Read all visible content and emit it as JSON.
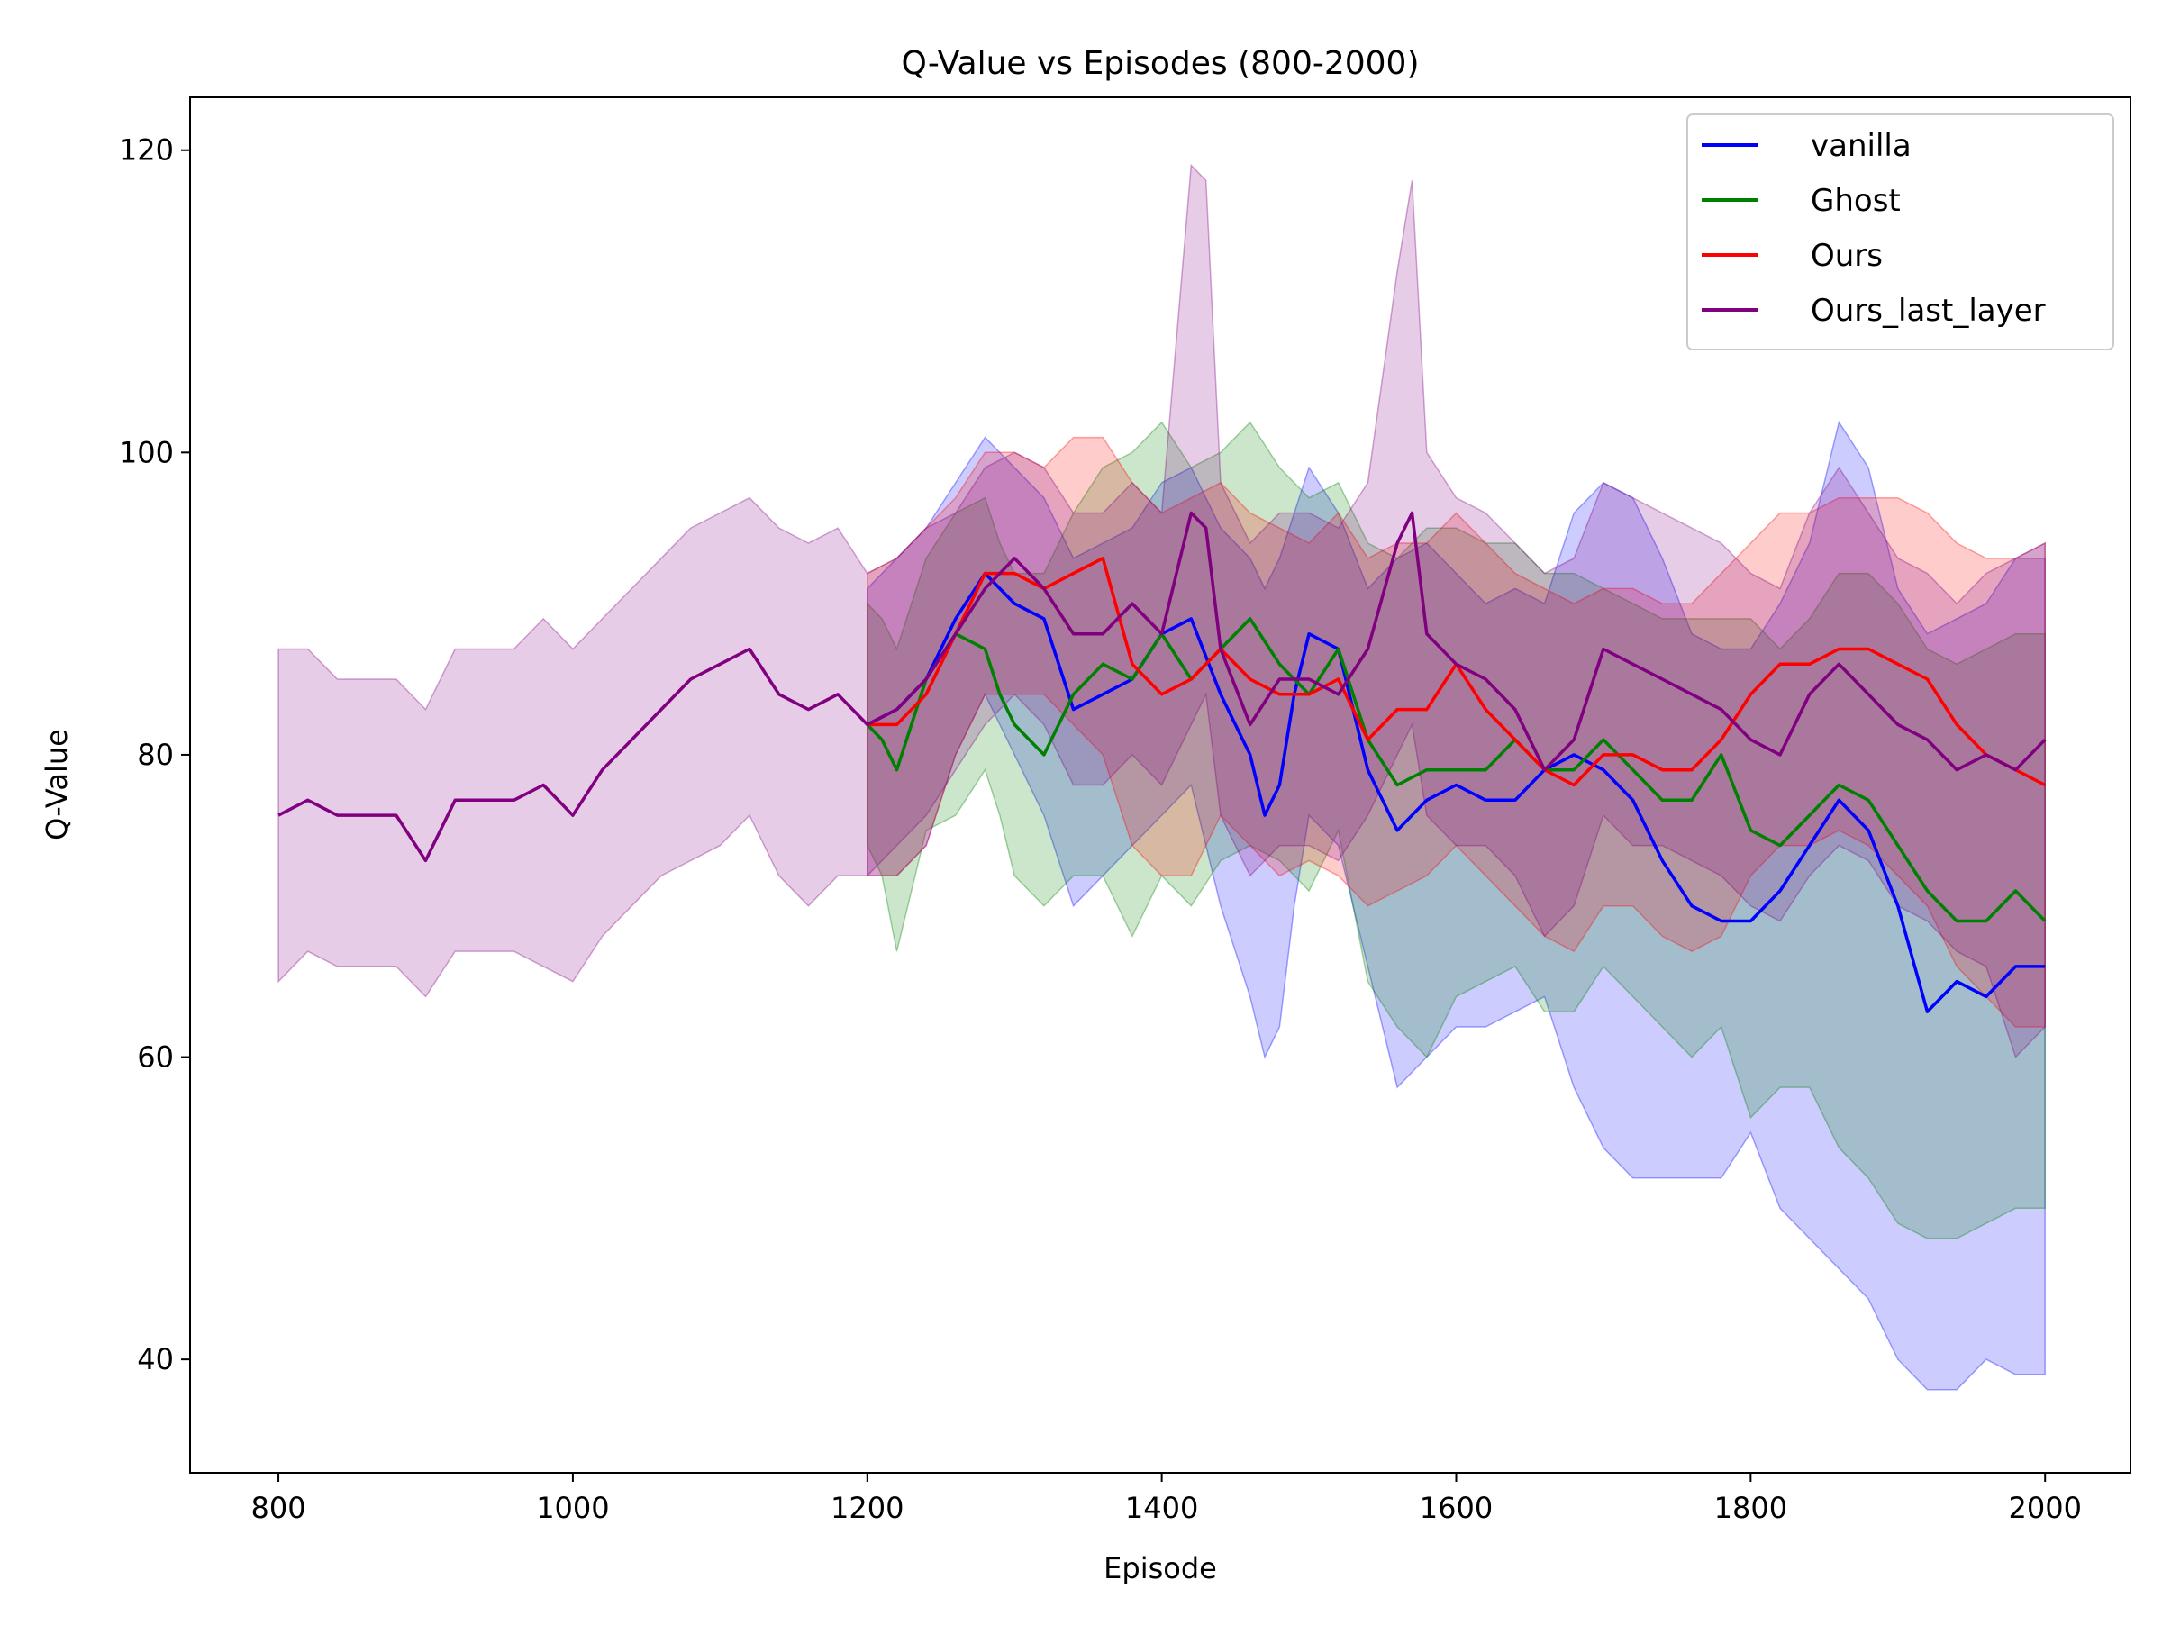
{
  "chart_data": {
    "type": "line",
    "title": "Q-Value vs Episodes (800-2000)",
    "xlabel": "Episode",
    "ylabel": "Q-Value",
    "xlim": [
      740,
      2058
    ],
    "ylim": [
      32.5,
      123.5
    ],
    "xticks": [
      800,
      1000,
      1200,
      1400,
      1600,
      1800,
      2000
    ],
    "yticks": [
      40,
      60,
      80,
      100,
      120
    ],
    "legend_position": "top-right",
    "series": [
      {
        "name": "vanilla",
        "color": "#0000ff",
        "x": [
          1200,
          1220,
          1240,
          1260,
          1280,
          1300,
          1320,
          1340,
          1360,
          1380,
          1400,
          1420,
          1440,
          1460,
          1470,
          1480,
          1490,
          1500,
          1520,
          1540,
          1560,
          1580,
          1600,
          1620,
          1640,
          1660,
          1680,
          1700,
          1720,
          1740,
          1760,
          1780,
          1800,
          1820,
          1840,
          1860,
          1880,
          1900,
          1920,
          1940,
          1960,
          1980,
          2000
        ],
        "mean": [
          82,
          83,
          85,
          89,
          92,
          90,
          89,
          83,
          84,
          85,
          88,
          89,
          84,
          80,
          76,
          78,
          84,
          88,
          87,
          79,
          75,
          77,
          78,
          77,
          77,
          79,
          80,
          79,
          77,
          73,
          70,
          69,
          69,
          71,
          74,
          77,
          75,
          70,
          63,
          65,
          64,
          66,
          66
        ],
        "lower": [
          72,
          72,
          74,
          80,
          84,
          80,
          76,
          70,
          72,
          74,
          76,
          78,
          70,
          64,
          60,
          62,
          70,
          76,
          74,
          66,
          58,
          60,
          62,
          62,
          63,
          64,
          58,
          54,
          52,
          52,
          52,
          52,
          55,
          50,
          48,
          46,
          44,
          40,
          38,
          38,
          40,
          39,
          39
        ],
        "upper": [
          91,
          93,
          95,
          98,
          101,
          99,
          97,
          93,
          94,
          95,
          98,
          99,
          95,
          93,
          91,
          93,
          96,
          99,
          96,
          91,
          93,
          94,
          92,
          90,
          91,
          90,
          96,
          98,
          97,
          93,
          88,
          87,
          87,
          90,
          94,
          102,
          99,
          91,
          88,
          89,
          90,
          93,
          94
        ]
      },
      {
        "name": "Ghost",
        "color": "#008000",
        "x": [
          1200,
          1210,
          1220,
          1240,
          1260,
          1280,
          1290,
          1300,
          1320,
          1340,
          1360,
          1380,
          1400,
          1420,
          1440,
          1460,
          1480,
          1500,
          1520,
          1540,
          1560,
          1580,
          1600,
          1620,
          1640,
          1660,
          1680,
          1700,
          1720,
          1740,
          1760,
          1780,
          1800,
          1820,
          1840,
          1860,
          1880,
          1900,
          1920,
          1940,
          1960,
          1980,
          2000
        ],
        "mean": [
          82,
          81,
          79,
          85,
          88,
          87,
          84,
          82,
          80,
          84,
          86,
          85,
          88,
          85,
          87,
          89,
          86,
          84,
          87,
          81,
          78,
          79,
          79,
          79,
          81,
          79,
          79,
          81,
          79,
          77,
          77,
          80,
          75,
          74,
          76,
          78,
          77,
          74,
          71,
          69,
          69,
          71,
          69
        ],
        "lower": [
          74,
          72,
          67,
          75,
          76,
          79,
          76,
          72,
          70,
          72,
          72,
          68,
          72,
          70,
          73,
          74,
          73,
          71,
          75,
          65,
          62,
          60,
          64,
          65,
          66,
          63,
          63,
          66,
          64,
          62,
          60,
          62,
          56,
          58,
          58,
          54,
          52,
          49,
          48,
          48,
          49,
          50,
          50
        ],
        "upper": [
          90,
          89,
          87,
          93,
          96,
          97,
          94,
          92,
          92,
          96,
          99,
          100,
          102,
          99,
          100,
          102,
          99,
          97,
          98,
          94,
          93,
          95,
          95,
          94,
          94,
          92,
          92,
          91,
          90,
          89,
          89,
          89,
          89,
          87,
          89,
          92,
          92,
          90,
          87,
          86,
          87,
          88,
          88
        ]
      },
      {
        "name": "Ours",
        "color": "#ff0000",
        "x": [
          1200,
          1220,
          1240,
          1260,
          1280,
          1300,
          1320,
          1340,
          1360,
          1380,
          1400,
          1420,
          1440,
          1460,
          1480,
          1500,
          1520,
          1540,
          1560,
          1580,
          1600,
          1620,
          1640,
          1660,
          1680,
          1700,
          1720,
          1740,
          1760,
          1780,
          1800,
          1820,
          1840,
          1860,
          1880,
          1900,
          1920,
          1940,
          1960,
          1980,
          2000
        ],
        "mean": [
          82,
          82,
          84,
          88,
          92,
          92,
          91,
          92,
          93,
          86,
          84,
          85,
          87,
          85,
          84,
          84,
          85,
          81,
          83,
          83,
          86,
          83,
          81,
          79,
          78,
          80,
          80,
          79,
          79,
          81,
          84,
          86,
          86,
          87,
          87,
          86,
          85,
          82,
          80,
          79,
          78
        ],
        "lower": [
          72,
          72,
          74,
          80,
          84,
          84,
          84,
          82,
          80,
          74,
          72,
          72,
          76,
          74,
          72,
          73,
          72,
          70,
          71,
          72,
          74,
          72,
          70,
          68,
          67,
          70,
          70,
          68,
          67,
          68,
          72,
          74,
          74,
          75,
          74,
          72,
          70,
          66,
          64,
          62,
          62
        ],
        "upper": [
          92,
          93,
          95,
          97,
          100,
          100,
          99,
          101,
          101,
          98,
          96,
          97,
          98,
          96,
          95,
          94,
          96,
          93,
          94,
          94,
          96,
          94,
          92,
          91,
          90,
          91,
          91,
          90,
          90,
          92,
          94,
          96,
          96,
          97,
          97,
          97,
          96,
          94,
          93,
          93,
          94
        ]
      },
      {
        "name": "Ours_last_layer",
        "color": "#800080",
        "x": [
          800,
          820,
          840,
          860,
          880,
          900,
          920,
          940,
          960,
          980,
          1000,
          1020,
          1040,
          1060,
          1080,
          1100,
          1120,
          1140,
          1160,
          1180,
          1200,
          1220,
          1240,
          1260,
          1280,
          1300,
          1320,
          1340,
          1360,
          1380,
          1400,
          1420,
          1430,
          1440,
          1460,
          1480,
          1500,
          1520,
          1540,
          1560,
          1570,
          1580,
          1600,
          1620,
          1640,
          1660,
          1680,
          1700,
          1720,
          1740,
          1760,
          1780,
          1800,
          1820,
          1840,
          1860,
          1880,
          1900,
          1920,
          1940,
          1960,
          1980,
          2000
        ],
        "mean": [
          76,
          77,
          76,
          76,
          76,
          73,
          77,
          77,
          77,
          78,
          76,
          79,
          81,
          83,
          85,
          86,
          87,
          84,
          83,
          84,
          82,
          83,
          85,
          88,
          91,
          93,
          91,
          88,
          88,
          90,
          88,
          96,
          95,
          87,
          82,
          85,
          85,
          84,
          87,
          94,
          96,
          88,
          86,
          85,
          83,
          79,
          81,
          87,
          86,
          85,
          84,
          83,
          81,
          80,
          84,
          86,
          84,
          82,
          81,
          79,
          80,
          79,
          81
        ],
        "lower": [
          65,
          67,
          66,
          66,
          66,
          64,
          67,
          67,
          67,
          66,
          65,
          68,
          70,
          72,
          73,
          74,
          76,
          72,
          70,
          72,
          72,
          74,
          76,
          79,
          82,
          84,
          82,
          78,
          78,
          80,
          78,
          82,
          84,
          76,
          72,
          74,
          74,
          73,
          76,
          80,
          82,
          76,
          74,
          74,
          72,
          68,
          70,
          76,
          74,
          74,
          73,
          72,
          70,
          69,
          72,
          74,
          73,
          70,
          69,
          67,
          66,
          60,
          62
        ],
        "upper": [
          87,
          87,
          85,
          85,
          85,
          83,
          87,
          87,
          87,
          89,
          87,
          89,
          91,
          93,
          95,
          96,
          97,
          95,
          94,
          95,
          92,
          93,
          95,
          96,
          99,
          100,
          99,
          96,
          96,
          98,
          96,
          119,
          118,
          98,
          94,
          96,
          96,
          95,
          98,
          112,
          118,
          100,
          97,
          96,
          94,
          92,
          93,
          98,
          97,
          96,
          95,
          94,
          92,
          91,
          96,
          99,
          96,
          93,
          92,
          90,
          92,
          93,
          93
        ]
      }
    ]
  }
}
